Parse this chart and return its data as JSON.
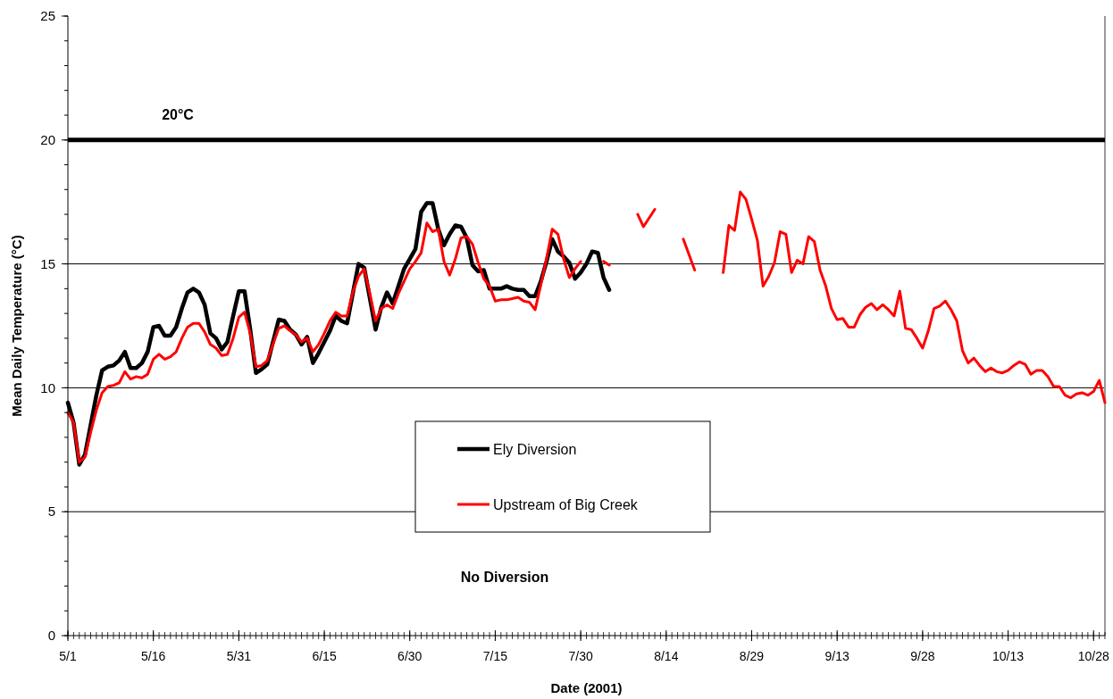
{
  "chart_data": {
    "type": "line",
    "xlabel": "Date (2001)",
    "ylabel": "Mean Daily Temperature (°C)",
    "annotations": [
      "No Diversion"
    ],
    "xlim": [
      "2001-05-01",
      "2001-10-30"
    ],
    "xticks": [
      {
        "value": "2001-05-01",
        "label": "5/1"
      },
      {
        "value": "2001-05-16",
        "label": "5/16"
      },
      {
        "value": "2001-05-31",
        "label": "5/31"
      },
      {
        "value": "2001-06-15",
        "label": "6/15"
      },
      {
        "value": "2001-06-30",
        "label": "6/30"
      },
      {
        "value": "2001-07-15",
        "label": "7/15"
      },
      {
        "value": "2001-07-30",
        "label": "7/30"
      },
      {
        "value": "2001-08-14",
        "label": "8/14"
      },
      {
        "value": "2001-08-29",
        "label": "8/29"
      },
      {
        "value": "2001-09-13",
        "label": "9/13"
      },
      {
        "value": "2001-09-28",
        "label": "9/28"
      },
      {
        "value": "2001-10-13",
        "label": "10/13"
      },
      {
        "value": "2001-10-28",
        "label": "10/28"
      }
    ],
    "ylim": [
      0,
      25
    ],
    "yticks": [
      0,
      5,
      10,
      15,
      20,
      25
    ],
    "grid": "y",
    "legend": "bottom",
    "marker": "none",
    "line_style": "solid",
    "ref_lines": [
      {
        "axis": "y",
        "value": 20,
        "label": "20°C",
        "color": "#000000"
      }
    ],
    "series": [
      {
        "name": "Ely Diversion",
        "color": "#000000",
        "x": [
          "2001-05-01",
          "2001-05-02",
          "2001-05-03",
          "2001-05-04",
          "2001-05-05",
          "2001-05-06",
          "2001-05-07",
          "2001-05-08",
          "2001-05-09",
          "2001-05-10",
          "2001-05-11",
          "2001-05-12",
          "2001-05-13",
          "2001-05-14",
          "2001-05-15",
          "2001-05-16",
          "2001-05-17",
          "2001-05-18",
          "2001-05-19",
          "2001-05-20",
          "2001-05-21",
          "2001-05-22",
          "2001-05-23",
          "2001-05-24",
          "2001-05-25",
          "2001-05-26",
          "2001-05-27",
          "2001-05-28",
          "2001-05-29",
          "2001-05-30",
          "2001-05-31",
          "2001-06-01",
          "2001-06-02",
          "2001-06-03",
          "2001-06-04",
          "2001-06-05",
          "2001-06-06",
          "2001-06-07",
          "2001-06-08",
          "2001-06-09",
          "2001-06-10",
          "2001-06-11",
          "2001-06-12",
          "2001-06-13",
          "2001-06-14",
          "2001-06-15",
          "2001-06-16",
          "2001-06-17",
          "2001-06-18",
          "2001-06-19",
          "2001-06-20",
          "2001-06-21",
          "2001-06-22",
          "2001-06-23",
          "2001-06-24",
          "2001-06-25",
          "2001-06-26",
          "2001-06-27",
          "2001-06-28",
          "2001-06-29",
          "2001-06-30",
          "2001-07-01",
          "2001-07-02",
          "2001-07-03",
          "2001-07-04",
          "2001-07-05",
          "2001-07-06",
          "2001-07-07",
          "2001-07-08",
          "2001-07-09",
          "2001-07-10",
          "2001-07-11",
          "2001-07-12",
          "2001-07-13",
          "2001-07-14",
          "2001-07-15",
          "2001-07-16",
          "2001-07-17",
          "2001-07-18",
          "2001-07-19",
          "2001-07-20",
          "2001-07-21",
          "2001-07-22",
          "2001-07-23",
          "2001-07-24",
          "2001-07-25",
          "2001-07-26",
          "2001-07-27",
          "2001-07-28",
          "2001-07-29",
          "2001-07-30",
          "2001-07-31",
          "2001-08-01",
          "2001-08-02",
          "2001-08-03",
          "2001-08-04"
        ],
        "values": [
          9.4,
          8.6,
          6.9,
          7.3,
          8.5,
          9.7,
          10.7,
          10.85,
          10.9,
          11.1,
          11.45,
          10.8,
          10.8,
          11.0,
          11.45,
          12.45,
          12.5,
          12.1,
          12.1,
          12.45,
          13.2,
          13.85,
          14.0,
          13.85,
          13.35,
          12.2,
          12.0,
          11.55,
          11.85,
          12.9,
          13.9,
          13.9,
          12.35,
          10.6,
          10.75,
          10.95,
          11.85,
          12.75,
          12.7,
          12.35,
          12.15,
          11.75,
          12.05,
          11.0,
          11.4,
          11.85,
          12.3,
          12.9,
          12.7,
          12.6,
          13.8,
          15.0,
          14.85,
          13.6,
          12.35,
          13.25,
          13.85,
          13.4,
          14.1,
          14.8,
          15.2,
          15.6,
          17.1,
          17.45,
          17.45,
          16.4,
          15.75,
          16.2,
          16.55,
          16.5,
          16.05,
          14.95,
          14.7,
          14.75,
          14.0,
          14.0,
          14.0,
          14.1,
          14.0,
          13.95,
          13.95,
          13.7,
          13.7,
          14.3,
          15.1,
          16.0,
          15.5,
          15.3,
          15.05,
          14.4,
          14.65,
          15.0,
          15.5,
          15.45,
          14.45,
          13.95
        ]
      },
      {
        "name": "Upstream of Big Creek",
        "color": "#ff0000",
        "x": [
          "2001-05-01",
          "2001-05-02",
          "2001-05-03",
          "2001-05-04",
          "2001-05-05",
          "2001-05-06",
          "2001-05-07",
          "2001-05-08",
          "2001-05-09",
          "2001-05-10",
          "2001-05-11",
          "2001-05-12",
          "2001-05-13",
          "2001-05-14",
          "2001-05-15",
          "2001-05-16",
          "2001-05-17",
          "2001-05-18",
          "2001-05-19",
          "2001-05-20",
          "2001-05-21",
          "2001-05-22",
          "2001-05-23",
          "2001-05-24",
          "2001-05-25",
          "2001-05-26",
          "2001-05-27",
          "2001-05-28",
          "2001-05-29",
          "2001-05-30",
          "2001-05-31",
          "2001-06-01",
          "2001-06-02",
          "2001-06-03",
          "2001-06-04",
          "2001-06-05",
          "2001-06-06",
          "2001-06-07",
          "2001-06-08",
          "2001-06-09",
          "2001-06-10",
          "2001-06-11",
          "2001-06-12",
          "2001-06-13",
          "2001-06-14",
          "2001-06-15",
          "2001-06-16",
          "2001-06-17",
          "2001-06-18",
          "2001-06-19",
          "2001-06-20",
          "2001-06-21",
          "2001-06-22",
          "2001-06-23",
          "2001-06-24",
          "2001-06-25",
          "2001-06-26",
          "2001-06-27",
          "2001-06-28",
          "2001-06-29",
          "2001-06-30",
          "2001-07-01",
          "2001-07-02",
          "2001-07-03",
          "2001-07-04",
          "2001-07-05",
          "2001-07-06",
          "2001-07-07",
          "2001-07-08",
          "2001-07-09",
          "2001-07-10",
          "2001-07-11",
          "2001-07-12",
          "2001-07-13",
          "2001-07-14",
          "2001-07-15",
          "2001-07-16",
          "2001-07-17",
          "2001-07-18",
          "2001-07-19",
          "2001-07-20",
          "2001-07-21",
          "2001-07-22",
          "2001-07-23",
          "2001-07-24",
          "2001-07-25",
          "2001-07-26",
          "2001-07-27",
          "2001-07-28",
          "2001-07-29",
          "2001-07-30",
          "2001-07-31",
          "2001-08-03",
          "2001-08-04",
          "2001-08-05",
          "2001-08-09",
          "2001-08-10",
          "2001-08-12",
          "2001-08-13",
          "2001-08-17",
          "2001-08-19",
          "2001-08-20",
          "2001-08-24",
          "2001-08-25",
          "2001-08-26",
          "2001-08-27",
          "2001-08-28",
          "2001-08-29",
          "2001-08-30",
          "2001-08-31",
          "2001-09-01",
          "2001-09-02",
          "2001-09-03",
          "2001-09-04",
          "2001-09-05",
          "2001-09-06",
          "2001-09-07",
          "2001-09-08",
          "2001-09-09",
          "2001-09-10",
          "2001-09-11",
          "2001-09-12",
          "2001-09-13",
          "2001-09-14",
          "2001-09-15",
          "2001-09-16",
          "2001-09-17",
          "2001-09-18",
          "2001-09-19",
          "2001-09-20",
          "2001-09-21",
          "2001-09-22",
          "2001-09-23",
          "2001-09-24",
          "2001-09-25",
          "2001-09-26",
          "2001-09-27",
          "2001-09-28",
          "2001-09-29",
          "2001-09-30",
          "2001-10-01",
          "2001-10-02",
          "2001-10-03",
          "2001-10-04",
          "2001-10-05",
          "2001-10-06",
          "2001-10-07",
          "2001-10-08",
          "2001-10-09",
          "2001-10-10",
          "2001-10-11",
          "2001-10-12",
          "2001-10-13",
          "2001-10-14",
          "2001-10-15",
          "2001-10-16",
          "2001-10-17",
          "2001-10-18",
          "2001-10-19",
          "2001-10-20",
          "2001-10-21",
          "2001-10-22",
          "2001-10-23",
          "2001-10-24",
          "2001-10-25",
          "2001-10-26",
          "2001-10-27",
          "2001-10-28",
          "2001-10-29",
          "2001-10-30"
        ],
        "values": [
          9.0,
          8.6,
          7.0,
          7.2,
          8.2,
          9.1,
          9.8,
          10.05,
          10.1,
          10.2,
          10.65,
          10.35,
          10.45,
          10.4,
          10.55,
          11.15,
          11.35,
          11.15,
          11.25,
          11.45,
          12.0,
          12.45,
          12.6,
          12.6,
          12.25,
          11.75,
          11.6,
          11.3,
          11.35,
          12.0,
          12.85,
          13.05,
          12.2,
          10.85,
          10.9,
          11.1,
          11.75,
          12.4,
          12.5,
          12.3,
          12.15,
          11.85,
          12.0,
          11.45,
          11.75,
          12.2,
          12.7,
          13.05,
          12.9,
          12.9,
          13.85,
          14.5,
          14.8,
          13.8,
          12.7,
          13.2,
          13.35,
          13.2,
          13.8,
          14.3,
          14.8,
          15.1,
          15.45,
          16.65,
          16.3,
          16.4,
          15.1,
          14.55,
          15.2,
          16.05,
          16.1,
          15.8,
          15.05,
          14.4,
          14.1,
          13.5,
          13.55,
          13.55,
          13.6,
          13.65,
          13.5,
          13.45,
          13.15,
          14.15,
          15.2,
          16.4,
          16.2,
          15.2,
          14.45,
          14.8,
          15.1,
          null,
          15.1,
          14.95,
          null,
          17.0,
          16.5,
          17.2,
          null,
          16.0,
          14.75,
          null,
          14.65,
          16.55,
          16.35,
          17.9,
          17.6,
          16.8,
          15.95,
          14.1,
          14.5,
          15.05,
          16.3,
          16.2,
          14.65,
          15.15,
          15.0,
          16.1,
          15.9,
          14.75,
          14.1,
          13.2,
          12.75,
          12.8,
          12.45,
          12.45,
          12.95,
          13.25,
          13.4,
          13.15,
          13.35,
          13.15,
          12.9,
          13.9,
          12.4,
          12.35,
          12.0,
          11.6,
          12.3,
          13.2,
          13.3,
          13.5,
          13.15,
          12.7,
          11.5,
          11.0,
          11.2,
          10.9,
          10.65,
          10.8,
          10.65,
          10.6,
          10.7,
          10.9,
          11.05,
          10.95,
          10.55,
          10.7,
          10.7,
          10.45,
          10.05,
          10.05,
          9.7,
          9.6,
          9.75,
          9.8,
          9.7,
          9.85,
          10.3,
          9.4
        ]
      }
    ]
  }
}
